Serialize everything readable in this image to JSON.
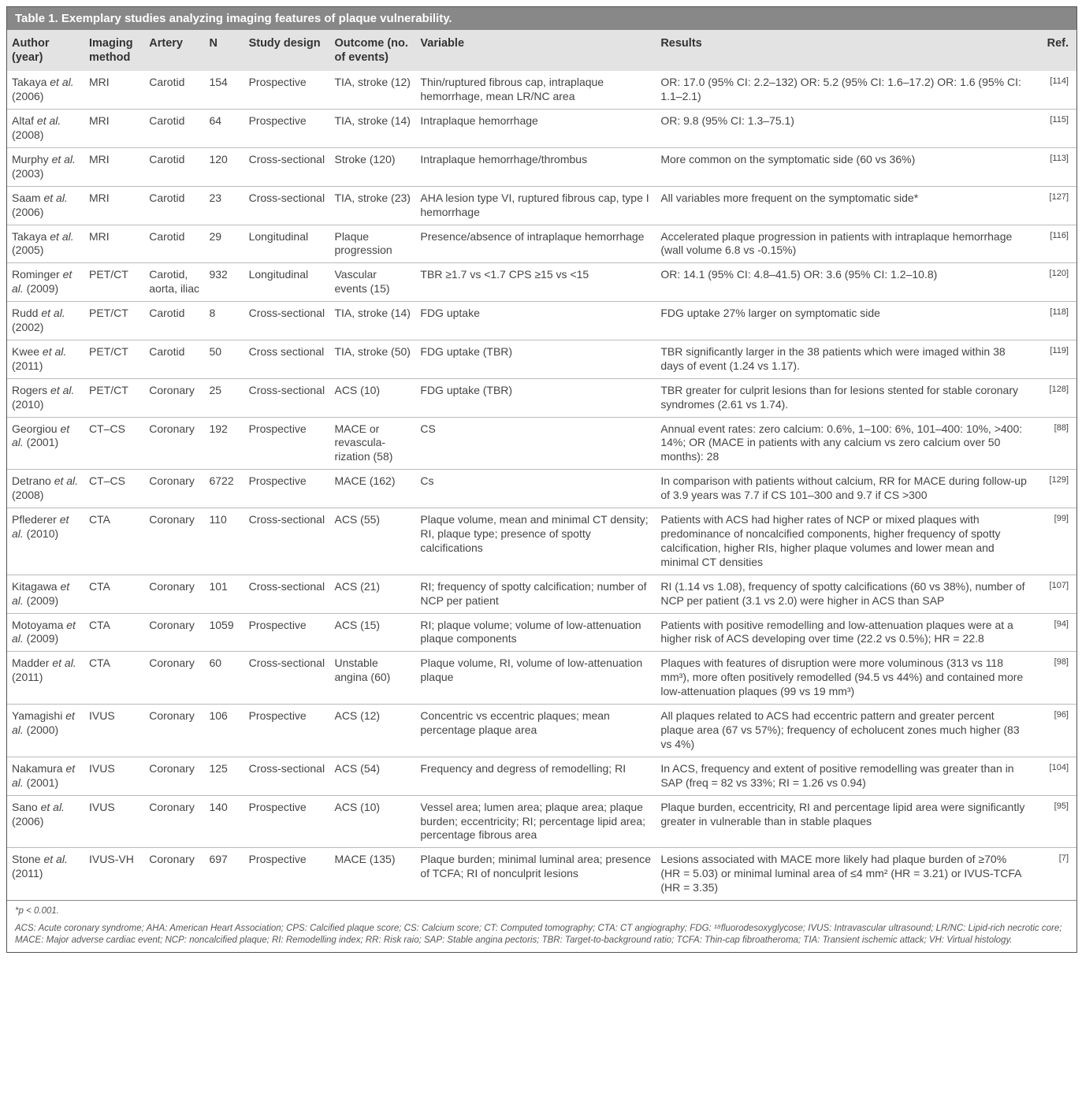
{
  "title": "Table 1. Exemplary studies analyzing imaging features of plaque vulnerability.",
  "headers": {
    "author": "Author (year)",
    "imaging": "Imaging method",
    "artery": "Artery",
    "n": "N",
    "design": "Study design",
    "outcome": "Outcome (no. of events)",
    "variable": "Variable",
    "results": "Results",
    "ref": "Ref."
  },
  "rows": [
    {
      "author": "Takaya <em>et al.</em> (2006)",
      "imaging": "MRI",
      "artery": "Carotid",
      "n": "154",
      "design": "Prospective",
      "outcome": "TIA, stroke (12)",
      "variable": "Thin/ruptured fibrous cap, intraplaque hemorrhage, mean LR/NC area",
      "results": "OR: 17.0 (95% CI: 2.2–132) OR: 5.2 (95% CI: 1.6–17.2) OR: 1.6 (95% CI: 1.1–2.1)",
      "ref": "[114]"
    },
    {
      "author": "Altaf <em>et al.</em> (2008)",
      "imaging": "MRI",
      "artery": "Carotid",
      "n": "64",
      "design": "Prospective",
      "outcome": "TIA, stroke (14)",
      "variable": "Intraplaque hemorrhage",
      "results": "OR: 9.8 (95% CI: 1.3–75.1)",
      "ref": "[115]"
    },
    {
      "author": "Murphy <em>et al.</em> (2003)",
      "imaging": "MRI",
      "artery": "Carotid",
      "n": "120",
      "design": "Cross-sectional",
      "outcome": "Stroke (120)",
      "variable": "Intraplaque hemorrhage/thrombus",
      "results": "More common on the symptomatic side (60 vs 36%)",
      "ref": "[113]"
    },
    {
      "author": "Saam <em>et al.</em> (2006)",
      "imaging": "MRI",
      "artery": "Carotid",
      "n": "23",
      "design": "Cross-sectional",
      "outcome": "TIA, stroke (23)",
      "variable": "AHA lesion type VI, ruptured fibrous cap, type I hemorrhage",
      "results": "All variables more frequent on the symptomatic side*",
      "ref": "[127]"
    },
    {
      "author": "Takaya <em>et al.</em> (2005)",
      "imaging": "MRI",
      "artery": "Carotid",
      "n": "29",
      "design": "Longitudinal",
      "outcome": "Plaque progression",
      "variable": "Presence/absence of intraplaque hemorrhage",
      "results": "Accelerated plaque progression in patients with intraplaque hemorrhage (wall volume 6.8 vs -0.15%)",
      "ref": "[116]"
    },
    {
      "author": "Rominger <em>et al.</em> (2009)",
      "imaging": "PET/CT",
      "artery": "Carotid, aorta, iliac",
      "n": "932",
      "design": "Longitudinal",
      "outcome": "Vascular events (15)",
      "variable": "TBR ≥1.7 vs <1.7 CPS ≥15 vs <15",
      "results": "OR: 14.1 (95% CI: 4.8–41.5) OR: 3.6 (95% CI: 1.2–10.8)",
      "ref": "[120]"
    },
    {
      "author": "Rudd <em>et al.</em> (2002)",
      "imaging": "PET/CT",
      "artery": "Carotid",
      "n": "8",
      "design": "Cross-sectional",
      "outcome": "TIA, stroke (14)",
      "variable": "FDG uptake",
      "results": "FDG uptake 27% larger on symptomatic side",
      "ref": "[118]"
    },
    {
      "author": "Kwee <em>et al.</em> (2011)",
      "imaging": "PET/CT",
      "artery": "Carotid",
      "n": "50",
      "design": "Cross sectional",
      "outcome": "TIA, stroke (50)",
      "variable": "FDG uptake (TBR)",
      "results": "TBR significantly larger in the 38 patients which were imaged within 38 days of event (1.24 vs 1.17).",
      "ref": "[119]"
    },
    {
      "author": "Rogers <em>et al.</em> (2010)",
      "imaging": "PET/CT",
      "artery": "Coronary",
      "n": "25",
      "design": "Cross-sectional",
      "outcome": "ACS (10)",
      "variable": "FDG uptake (TBR)",
      "results": "TBR greater for culprit lesions than for lesions stented for stable coronary syndromes (2.61 vs 1.74).",
      "ref": "[128]"
    },
    {
      "author": "Georgiou <em>et al.</em> (2001)",
      "imaging": "CT–CS",
      "artery": "Coronary",
      "n": "192",
      "design": "Prospective",
      "outcome": "MACE or revascula-rization (58)",
      "variable": "CS",
      "results": "Annual event rates: zero calcium: 0.6%, 1–100: 6%, 101–400: 10%, >400: 14%; OR (MACE in patients with any calcium vs zero calcium over 50 months): 28",
      "ref": "[88]"
    },
    {
      "author": "Detrano <em>et al.</em> (2008)",
      "imaging": "CT–CS",
      "artery": "Coronary",
      "n": "6722",
      "design": "Prospective",
      "outcome": "MACE (162)",
      "variable": "Cs",
      "results": "In comparison with patients without calcium, RR for MACE during follow-up of 3.9 years was 7.7 if CS 101–300 and 9.7 if CS >300",
      "ref": "[129]"
    },
    {
      "author": "Pflederer <em>et al.</em> (2010)",
      "imaging": "CTA",
      "artery": "Coronary",
      "n": "110",
      "design": "Cross-sectional",
      "outcome": "ACS (55)",
      "variable": "Plaque volume, mean and minimal CT density; RI, plaque type; presence of spotty calcifications",
      "results": "Patients with ACS had higher rates of NCP or mixed plaques with predominance of noncalcified components, higher frequency of spotty calcification, higher RIs, higher plaque volumes and lower mean and minimal CT densities",
      "ref": "[99]"
    },
    {
      "author": "Kitagawa <em>et al.</em> (2009)",
      "imaging": "CTA",
      "artery": "Coronary",
      "n": "101",
      "design": "Cross-sectional",
      "outcome": "ACS (21)",
      "variable": "RI; frequency of spotty calcification; number of NCP per patient",
      "results": "RI (1.14 vs 1.08), frequency of spotty calcifications (60 vs 38%), number of NCP per patient (3.1 vs 2.0) were higher in ACS than SAP",
      "ref": "[107]"
    },
    {
      "author": "Motoyama <em>et al.</em> (2009)",
      "imaging": "CTA",
      "artery": "Coronary",
      "n": "1059",
      "design": "Prospective",
      "outcome": "ACS (15)",
      "variable": "RI; plaque volume; volume of low-attenuation plaque components",
      "results": "Patients with positive remodelling and low-attenuation plaques were at a higher risk of ACS developing over time (22.2 vs 0.5%); HR = 22.8",
      "ref": "[94]"
    },
    {
      "author": "Madder <em>et al.</em> (2011)",
      "imaging": "CTA",
      "artery": "Coronary",
      "n": "60",
      "design": "Cross-sectional",
      "outcome": "Unstable angina (60)",
      "variable": "Plaque volume, RI, volume of low-attenuation plaque",
      "results": "Plaques with features of disruption were more voluminous (313 vs 118 mm³), more often positively remodelled (94.5 vs 44%) and contained more low-attenuation plaques (99 vs 19 mm³)",
      "ref": "[98]"
    },
    {
      "author": "Yamagishi <em>et al.</em> (2000)",
      "imaging": "IVUS",
      "artery": "Coronary",
      "n": "106",
      "design": "Prospective",
      "outcome": "ACS (12)",
      "variable": "Concentric vs eccentric plaques; mean percentage plaque area",
      "results": "All plaques related to ACS had eccentric pattern and greater percent plaque area (67 vs 57%); frequency of echolucent zones much higher (83 vs 4%)",
      "ref": "[96]"
    },
    {
      "author": "Nakamura <em>et al.</em> (2001)",
      "imaging": "IVUS",
      "artery": "Coronary",
      "n": "125",
      "design": "Cross-sectional",
      "outcome": "ACS (54)",
      "variable": "Frequency and degress of remodelling; RI",
      "results": "In ACS, frequency and extent of positive remodelling was greater than in SAP (freq = 82 vs 33%; RI = 1.26 vs 0.94)",
      "ref": "[104]"
    },
    {
      "author": "Sano <em>et al.</em> (2006)",
      "imaging": "IVUS",
      "artery": "Coronary",
      "n": "140",
      "design": "Prospective",
      "outcome": "ACS (10)",
      "variable": "Vessel area; lumen area; plaque area; plaque burden; eccentricity; RI; percentage lipid area; percentage fibrous area",
      "results": "Plaque burden, eccentricity, RI and percentage lipid area were significantly greater in vulnerable than in stable plaques",
      "ref": "[95]"
    },
    {
      "author": "Stone <em>et al.</em> (2011)",
      "imaging": "IVUS-VH",
      "artery": "Coronary",
      "n": "697",
      "design": "Prospective",
      "outcome": "MACE (135)",
      "variable": "Plaque burden; minimal luminal area; presence of TCFA; RI of nonculprit lesions",
      "results": "Lesions associated with MACE more likely had plaque burden of ≥70% (HR = 5.03) or minimal luminal area of ≤4 mm² (HR = 3.21) or IVUS-TCFA (HR = 3.35)",
      "ref": "[7]"
    }
  ],
  "footnote_p": "*p < 0.001.",
  "footnote_abbr": "ACS: Acute coronary syndrome; AHA: American Heart Association; CPS: Calcified plaque score; CS: Calcium score; CT: Computed tomography; CTA: CT angiography; FDG: ¹⁸fluorodesoxyglycose; IVUS: Intravascular ultrasound; LR/NC: Lipid-rich necrotic core; MACE: Major adverse cardiac event; NCP: noncalcified plaque; RI: Remodelling index; RR: Risk raio; SAP: Stable angina pectoris; TBR: Target-to-background ratio; TCFA: Thin-cap fibroatheroma; TIA: Transient ischemic attack; VH: Virtual histology."
}
